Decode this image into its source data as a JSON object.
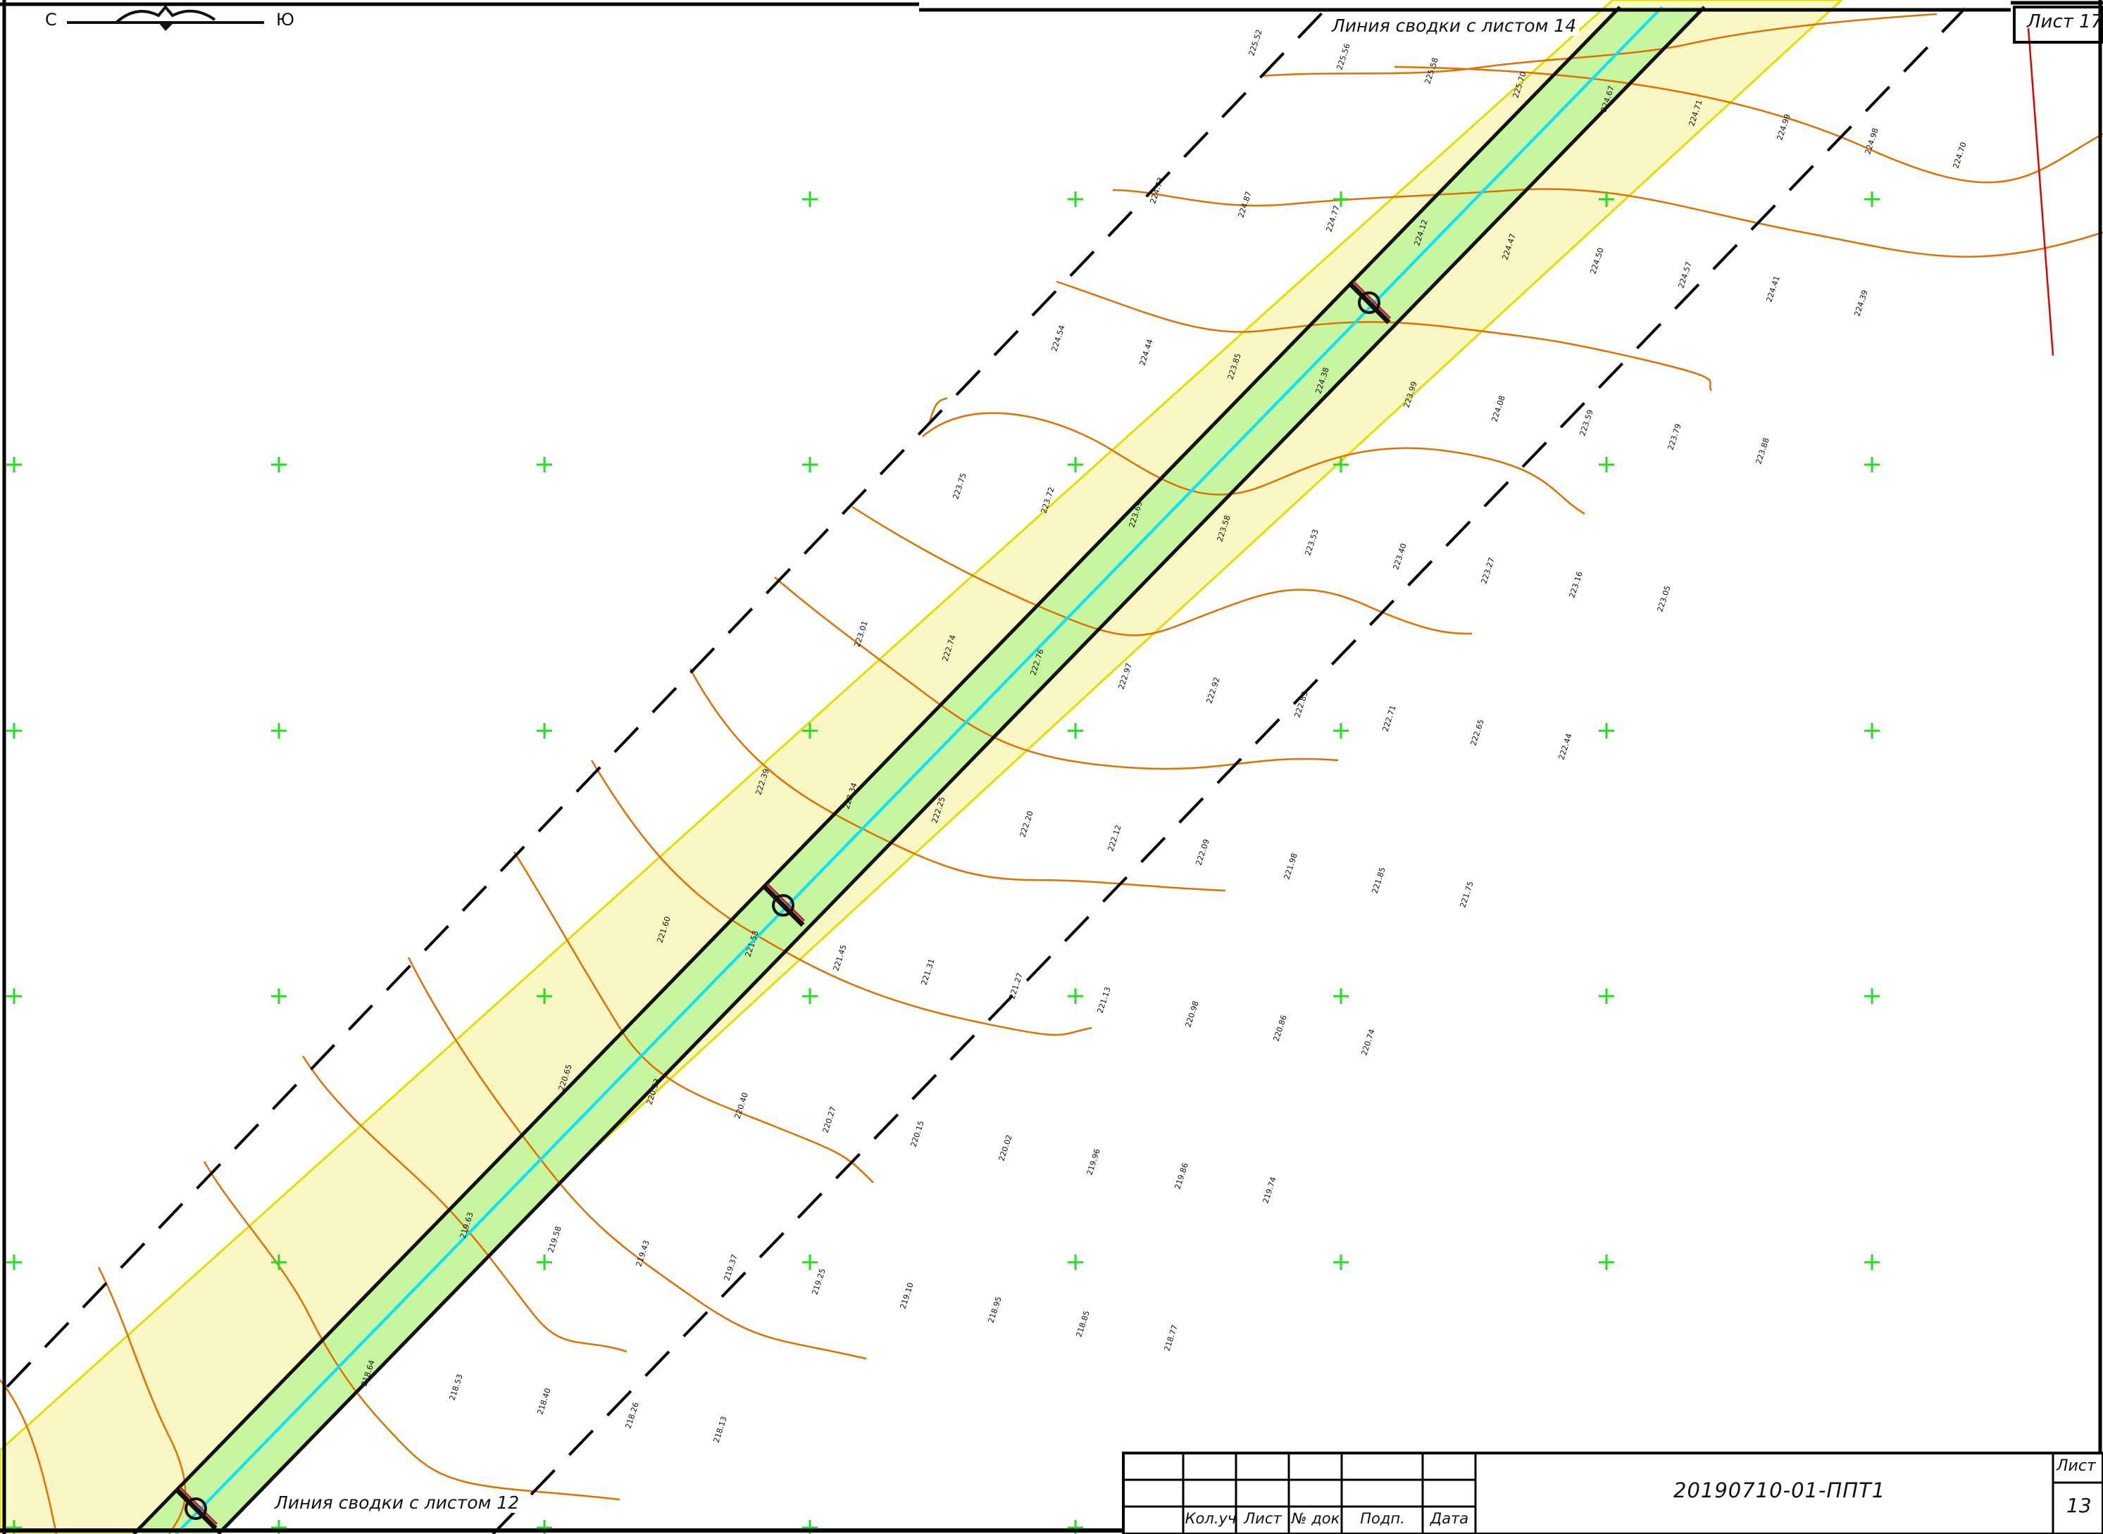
{
  "drawing": {
    "link_line_top": "Линия сводки с листом 14",
    "link_line_bottom": "Линия сводки с листом 12",
    "adjacent_sheet": "Лист 17",
    "north_arrow": {
      "north": "С",
      "south": "Ю"
    }
  },
  "colors": {
    "frame": "#000000",
    "pipeline_axis": "#00e6ff",
    "corridor_inner": "#c8f5a0",
    "corridor_outer": "#fbf7c4",
    "corridor_edge": "#e0e000",
    "contours": "#e07000",
    "grid_crosses": "#22dd22",
    "boundary_red": "#e00000"
  },
  "elevation_labels": [
    "225.52",
    "225.56",
    "225.58",
    "225.70",
    "224.67",
    "224.71",
    "224.99",
    "224.98",
    "224.70",
    "224.73",
    "224.87",
    "224.77",
    "224.12",
    "224.47",
    "224.50",
    "224.57",
    "224.41",
    "224.39",
    "224.54",
    "224.44",
    "223.85",
    "224.38",
    "223.99",
    "224.08",
    "223.59",
    "223.79",
    "223.88",
    "223.75",
    "223.72",
    "223.69",
    "223.58",
    "223.53",
    "223.40",
    "223.27",
    "223.16",
    "223.05",
    "223.01",
    "222.74",
    "222.76",
    "222.97",
    "222.92",
    "222.83",
    "222.71",
    "222.65",
    "222.44",
    "222.39",
    "222.34",
    "222.25",
    "222.20",
    "222.12",
    "222.09",
    "221.98",
    "221.85",
    "221.75",
    "221.60",
    "221.53",
    "221.45",
    "221.31",
    "221.27",
    "221.13",
    "220.98",
    "220.86",
    "220.74",
    "220.65",
    "220.53",
    "220.40",
    "220.27",
    "220.15",
    "220.02",
    "219.96",
    "219.86",
    "219.74",
    "219.63",
    "219.58",
    "219.43",
    "219.37",
    "219.25",
    "219.10",
    "218.95",
    "218.85",
    "218.77",
    "218.64",
    "218.53",
    "218.40",
    "218.26",
    "218.13"
  ],
  "stamp": {
    "headers": [
      "Кол.уч",
      "Лист",
      "№ док",
      "Подп.",
      "Дата"
    ],
    "document_code": "20190710-01-ППТ1",
    "sheet_label": "Лист",
    "sheet_number": "13"
  }
}
